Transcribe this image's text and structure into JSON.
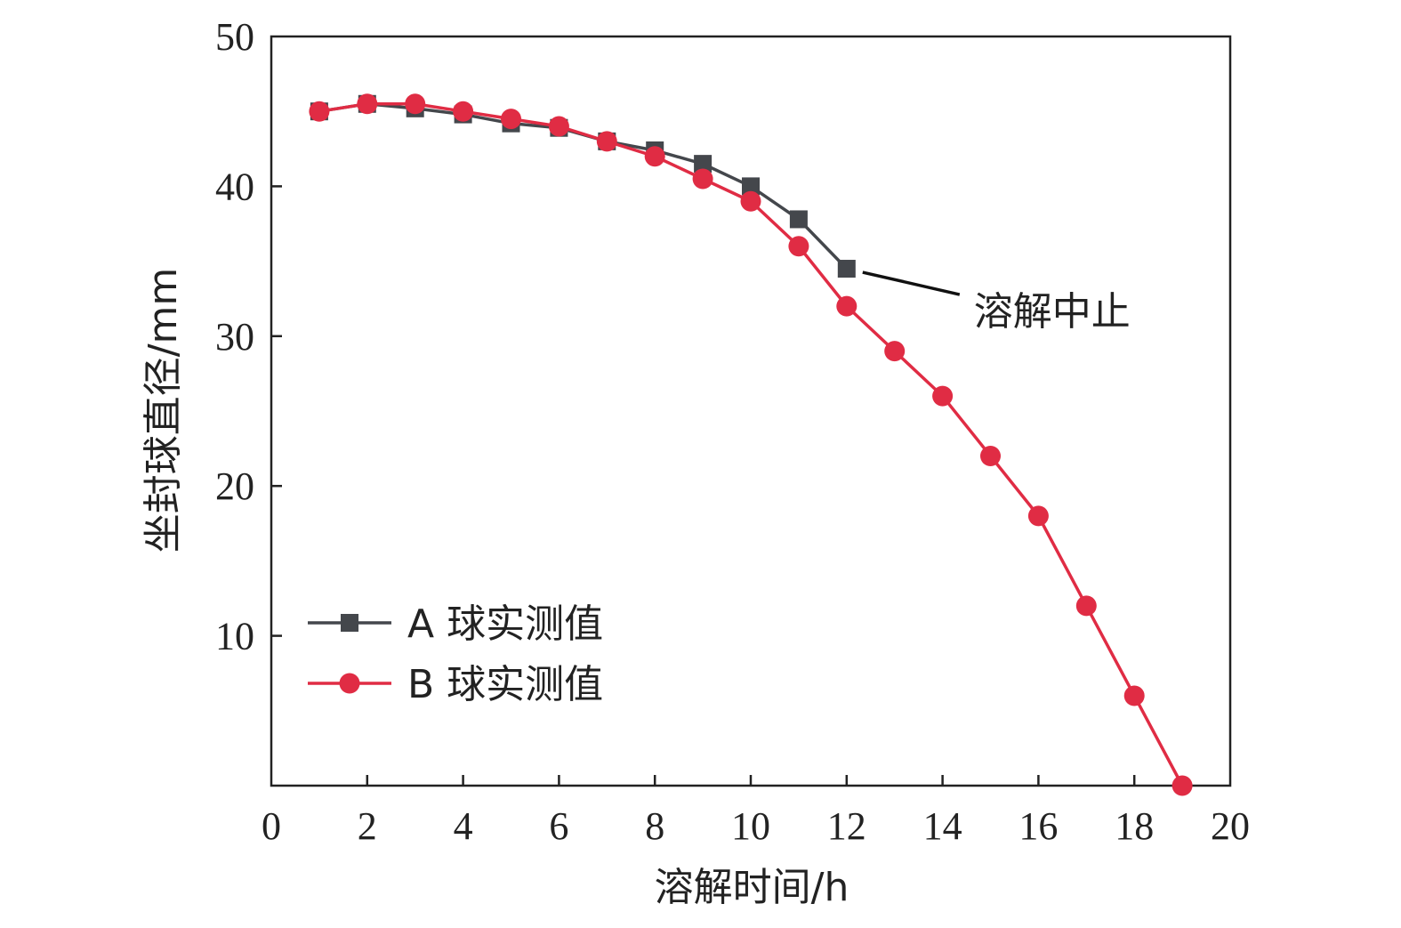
{
  "chart_data": {
    "type": "line",
    "xlabel": "溶解时间/h",
    "ylabel": "坐封球直径/mm",
    "xlim": [
      0,
      20
    ],
    "ylim": [
      0,
      50
    ],
    "xticks": [
      0,
      2,
      4,
      6,
      8,
      10,
      12,
      14,
      16,
      18,
      20
    ],
    "yticks": [
      10,
      20,
      30,
      40,
      50
    ],
    "grid": false,
    "legend_position": "lower-left",
    "series": [
      {
        "name": "A 球实测值",
        "color": "#44474c",
        "marker": "square",
        "x": [
          1,
          2,
          3,
          4,
          5,
          6,
          7,
          8,
          9,
          10,
          11,
          12
        ],
        "y": [
          45.0,
          45.5,
          45.2,
          44.8,
          44.2,
          43.9,
          43.0,
          42.4,
          41.5,
          40.0,
          37.8,
          34.5
        ]
      },
      {
        "name": "B 球实测值",
        "color": "#e02c44",
        "marker": "circle",
        "x": [
          1,
          2,
          3,
          4,
          5,
          6,
          7,
          8,
          9,
          10,
          11,
          12,
          13,
          14,
          15,
          16,
          17,
          18,
          19
        ],
        "y": [
          45.0,
          45.5,
          45.5,
          45.0,
          44.5,
          44.0,
          43.0,
          42.0,
          40.5,
          39.0,
          36.0,
          32.0,
          29.0,
          26.0,
          22.0,
          18.0,
          12.0,
          6.0,
          0.0
        ]
      }
    ],
    "annotations": [
      {
        "text": "溶解中止",
        "x": 12,
        "y": 34.5
      }
    ]
  }
}
